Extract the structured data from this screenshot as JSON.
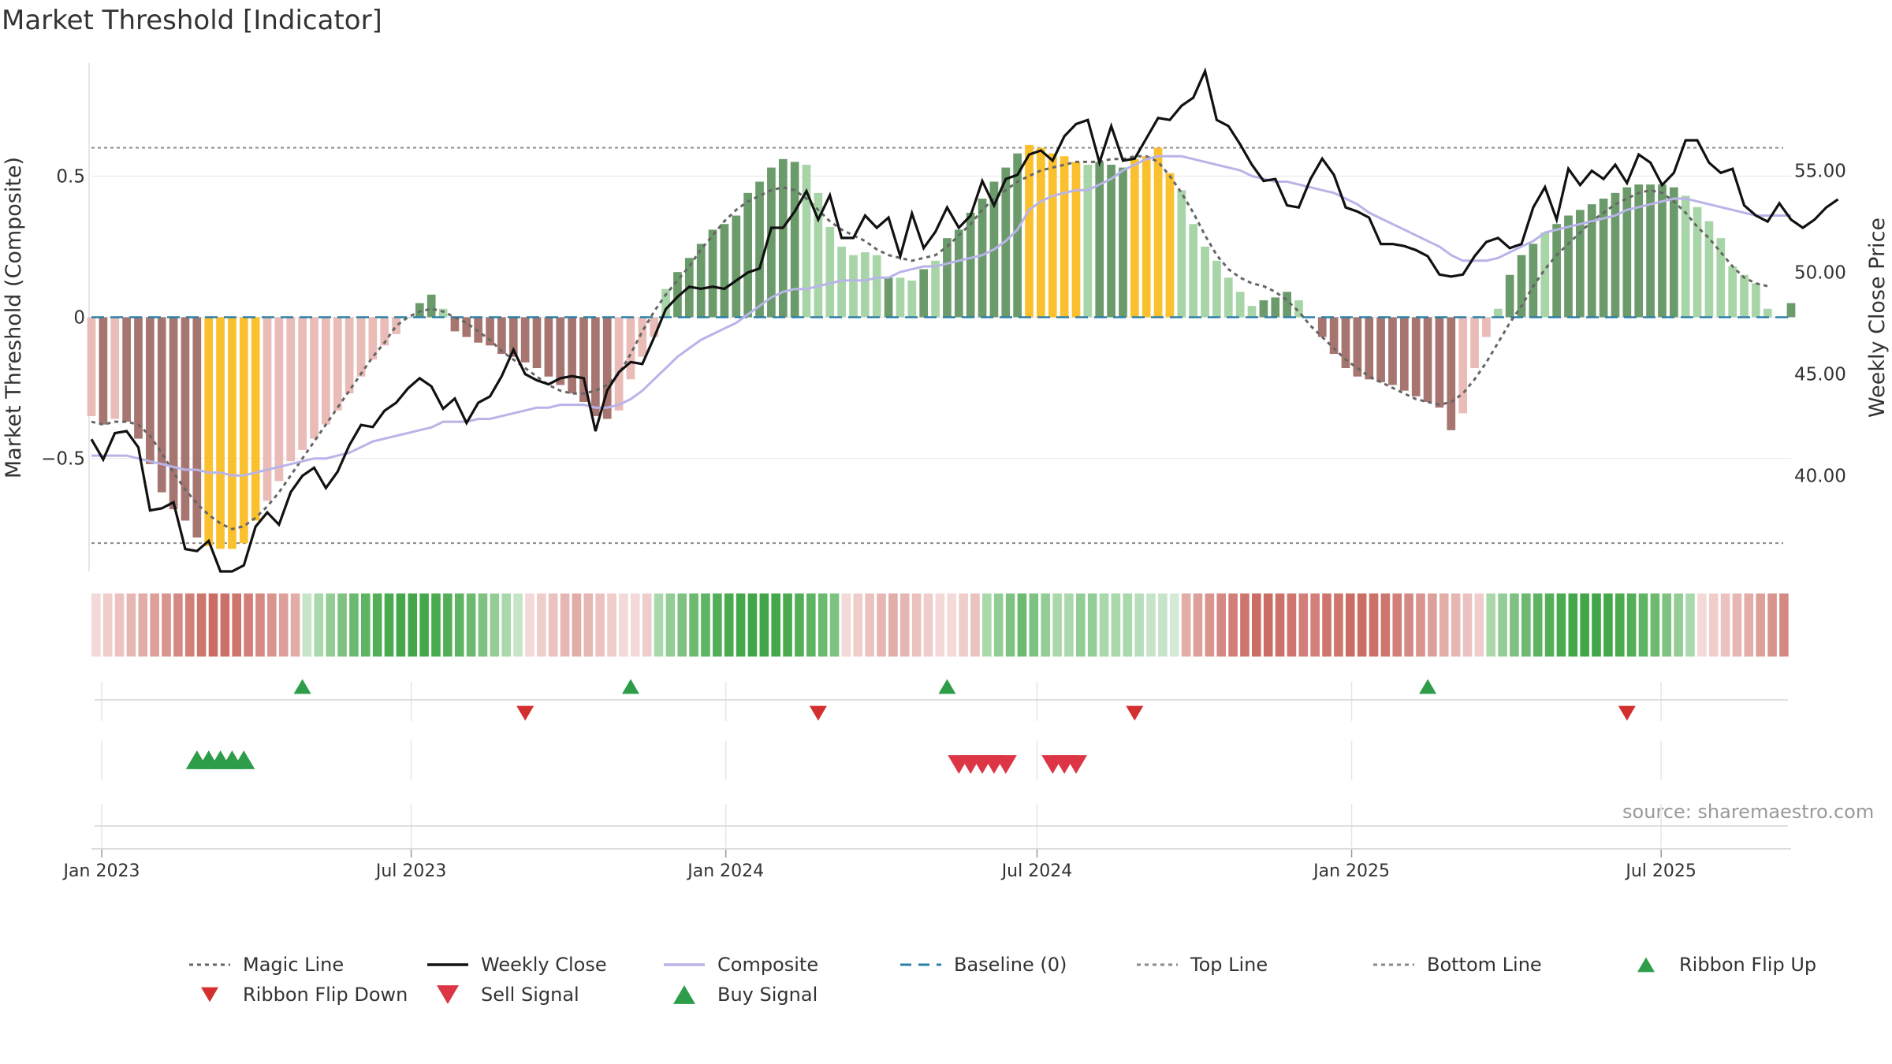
{
  "title": "Market Threshold [Indicator]",
  "source": "source: sharemaestro.com",
  "chart_data": {
    "type": "bar",
    "title": "Market Threshold [Indicator]",
    "ylabel_left": "Market Threshold (Composite)",
    "ylabel_right": "Weekly Close Price",
    "ylim_left": [
      -0.9,
      0.9
    ],
    "ylim_right": [
      35.3,
      60.3
    ],
    "yticks_left": [
      {
        "v": 0.5,
        "label": "0.5"
      },
      {
        "v": 0,
        "label": "0"
      },
      {
        "v": -0.5,
        "label": "−0.5"
      }
    ],
    "yticks_right": [
      {
        "v": 55,
        "label": "55.00"
      },
      {
        "v": 50,
        "label": "50.00"
      },
      {
        "v": 45,
        "label": "45.00"
      },
      {
        "v": 40,
        "label": "40.00"
      }
    ],
    "x_range": [
      "2022-12-26",
      "2025-09-15"
    ],
    "xticks": [
      {
        "date": "2023-01-01",
        "label": "Jan 2023"
      },
      {
        "date": "2023-07-01",
        "label": "Jul 2023"
      },
      {
        "date": "2024-01-01",
        "label": "Jan 2024"
      },
      {
        "date": "2024-07-01",
        "label": "Jul 2024"
      },
      {
        "date": "2025-01-01",
        "label": "Jan 2025"
      },
      {
        "date": "2025-07-01",
        "label": "Jul 2025"
      }
    ],
    "top_line": 0.6,
    "bottom_line": -0.8,
    "baseline": 0,
    "weeks_start": "2022-12-26",
    "composite_bars": [
      -0.35,
      -0.38,
      -0.36,
      -0.37,
      -0.43,
      -0.52,
      -0.62,
      -0.68,
      -0.72,
      -0.78,
      -0.81,
      -0.82,
      -0.82,
      -0.8,
      -0.72,
      -0.65,
      -0.58,
      -0.51,
      -0.47,
      -0.43,
      -0.38,
      -0.33,
      -0.27,
      -0.21,
      -0.15,
      -0.1,
      -0.06,
      0,
      0.05,
      0.08,
      0.03,
      -0.05,
      -0.07,
      -0.09,
      -0.1,
      -0.13,
      -0.14,
      -0.16,
      -0.18,
      -0.21,
      -0.24,
      -0.27,
      -0.3,
      -0.35,
      -0.36,
      -0.33,
      -0.22,
      -0.14,
      -0.07,
      0.1,
      0.16,
      0.21,
      0.26,
      0.31,
      0.33,
      0.36,
      0.44,
      0.48,
      0.53,
      0.56,
      0.55,
      0.54,
      0.44,
      0.32,
      0.25,
      0.22,
      0.23,
      0.22,
      0.14,
      0.14,
      0.13,
      0.17,
      0.2,
      0.28,
      0.31,
      0.37,
      0.42,
      0.48,
      0.53,
      0.58,
      0.61,
      0.6,
      0.58,
      0.57,
      0.55,
      0.54,
      0.55,
      0.54,
      0.53,
      0.56,
      0.57,
      0.6,
      0.51,
      0.45,
      0.33,
      0.25,
      0.2,
      0.14,
      0.09,
      0.04,
      0.06,
      0.07,
      0.09,
      0.06,
      0,
      -0.07,
      -0.13,
      -0.18,
      -0.21,
      -0.22,
      -0.23,
      -0.24,
      -0.26,
      -0.28,
      -0.3,
      -0.32,
      -0.4,
      -0.34,
      -0.18,
      -0.07,
      0.03,
      0.15,
      0.22,
      0.26,
      0.3,
      0.33,
      0.36,
      0.38,
      0.4,
      0.42,
      0.44,
      0.46,
      0.47,
      0.47,
      0.47,
      0.46,
      0.43,
      0.39,
      0.34,
      0.28,
      0.18,
      0.15,
      0.12,
      0.03,
      0,
      0.05
    ],
    "bar_colors": [
      "#eabcb7",
      "#a77570",
      "#eabcb7",
      "#a77570",
      "#a77570",
      "#a77570",
      "#a77570",
      "#a77570",
      "#a77570",
      "#a77570",
      "#fbc02d",
      "#fbc02d",
      "#fbc02d",
      "#fbc02d",
      "#fbc02d",
      "#eabcb7",
      "#eabcb7",
      "#eabcb7",
      "#eabcb7",
      "#eabcb7",
      "#eabcb7",
      "#eabcb7",
      "#eabcb7",
      "#eabcb7",
      "#eabcb7",
      "#eabcb7",
      "#eabcb7",
      "#a8d5a8",
      "#6b9b6b",
      "#6b9b6b",
      "#a8d5a8",
      "#a77570",
      "#a77570",
      "#a77570",
      "#a77570",
      "#a77570",
      "#a77570",
      "#a77570",
      "#a77570",
      "#a77570",
      "#a77570",
      "#a77570",
      "#a77570",
      "#a77570",
      "#a77570",
      "#eabcb7",
      "#eabcb7",
      "#eabcb7",
      "#eabcb7",
      "#a8d5a8",
      "#6b9b6b",
      "#6b9b6b",
      "#6b9b6b",
      "#6b9b6b",
      "#6b9b6b",
      "#6b9b6b",
      "#6b9b6b",
      "#6b9b6b",
      "#6b9b6b",
      "#6b9b6b",
      "#6b9b6b",
      "#a8d5a8",
      "#a8d5a8",
      "#a8d5a8",
      "#a8d5a8",
      "#a8d5a8",
      "#a8d5a8",
      "#a8d5a8",
      "#6b9b6b",
      "#a8d5a8",
      "#a8d5a8",
      "#6b9b6b",
      "#a8d5a8",
      "#6b9b6b",
      "#6b9b6b",
      "#6b9b6b",
      "#6b9b6b",
      "#6b9b6b",
      "#6b9b6b",
      "#6b9b6b",
      "#fbc02d",
      "#fbc02d",
      "#fbc02d",
      "#fbc02d",
      "#fbc02d",
      "#a8d5a8",
      "#6b9b6b",
      "#6b9b6b",
      "#6b9b6b",
      "#fbc02d",
      "#fbc02d",
      "#fbc02d",
      "#fbc02d",
      "#a8d5a8",
      "#a8d5a8",
      "#a8d5a8",
      "#a8d5a8",
      "#a8d5a8",
      "#a8d5a8",
      "#a8d5a8",
      "#6b9b6b",
      "#6b9b6b",
      "#6b9b6b",
      "#a8d5a8",
      "#a77570",
      "#a77570",
      "#a77570",
      "#a77570",
      "#a77570",
      "#a77570",
      "#a77570",
      "#a77570",
      "#a77570",
      "#a77570",
      "#a77570",
      "#a77570",
      "#a77570",
      "#eabcb7",
      "#eabcb7",
      "#eabcb7",
      "#a8d5a8",
      "#6b9b6b",
      "#6b9b6b",
      "#6b9b6b",
      "#a8d5a8",
      "#6b9b6b",
      "#6b9b6b",
      "#6b9b6b",
      "#6b9b6b",
      "#6b9b6b",
      "#6b9b6b",
      "#6b9b6b",
      "#6b9b6b",
      "#6b9b6b",
      "#6b9b6b",
      "#6b9b6b",
      "#a8d5a8",
      "#a8d5a8",
      "#a8d5a8",
      "#a8d5a8",
      "#a8d5a8",
      "#a8d5a8",
      "#a8d5a8",
      "#a8d5a8",
      "#a8d5a8",
      "#6b9b6b"
    ],
    "composite_line": [
      -0.49,
      -0.49,
      -0.49,
      -0.49,
      -0.5,
      -0.51,
      -0.52,
      -0.53,
      -0.54,
      -0.54,
      -0.55,
      -0.55,
      -0.56,
      -0.56,
      -0.55,
      -0.54,
      -0.53,
      -0.52,
      -0.51,
      -0.5,
      -0.5,
      -0.49,
      -0.48,
      -0.46,
      -0.44,
      -0.43,
      -0.42,
      -0.41,
      -0.4,
      -0.39,
      -0.37,
      -0.37,
      -0.37,
      -0.36,
      -0.36,
      -0.35,
      -0.34,
      -0.33,
      -0.32,
      -0.32,
      -0.31,
      -0.31,
      -0.31,
      -0.32,
      -0.32,
      -0.31,
      -0.29,
      -0.26,
      -0.22,
      -0.18,
      -0.14,
      -0.11,
      -0.08,
      -0.06,
      -0.04,
      -0.02,
      0.01,
      0.04,
      0.07,
      0.09,
      0.1,
      0.1,
      0.11,
      0.12,
      0.13,
      0.13,
      0.13,
      0.14,
      0.14,
      0.16,
      0.17,
      0.18,
      0.18,
      0.19,
      0.2,
      0.21,
      0.22,
      0.24,
      0.27,
      0.31,
      0.38,
      0.41,
      0.43,
      0.44,
      0.45,
      0.45,
      0.47,
      0.49,
      0.52,
      0.54,
      0.56,
      0.57,
      0.57,
      0.57,
      0.56,
      0.55,
      0.54,
      0.53,
      0.52,
      0.5,
      0.49,
      0.48,
      0.48,
      0.47,
      0.46,
      0.45,
      0.44,
      0.42,
      0.4,
      0.37,
      0.35,
      0.33,
      0.31,
      0.29,
      0.27,
      0.25,
      0.22,
      0.2,
      0.2,
      0.2,
      0.21,
      0.23,
      0.25,
      0.27,
      0.3,
      0.31,
      0.32,
      0.33,
      0.34,
      0.35,
      0.36,
      0.38,
      0.39,
      0.4,
      0.41,
      0.42,
      0.42,
      0.41,
      0.4,
      0.39,
      0.38,
      0.37,
      0.36,
      0.36,
      0.36,
      0.36
    ],
    "magic_line": [
      -0.37,
      -0.38,
      -0.37,
      -0.37,
      -0.38,
      -0.42,
      -0.48,
      -0.55,
      -0.61,
      -0.66,
      -0.7,
      -0.73,
      -0.75,
      -0.74,
      -0.71,
      -0.67,
      -0.62,
      -0.56,
      -0.5,
      -0.44,
      -0.38,
      -0.32,
      -0.26,
      -0.2,
      -0.14,
      -0.09,
      -0.03,
      0,
      0.02,
      0.03,
      0.02,
      0,
      -0.02,
      -0.05,
      -0.08,
      -0.12,
      -0.15,
      -0.18,
      -0.21,
      -0.24,
      -0.26,
      -0.27,
      -0.27,
      -0.26,
      -0.24,
      -0.2,
      -0.13,
      -0.05,
      0.02,
      0.08,
      0.13,
      0.18,
      0.24,
      0.29,
      0.34,
      0.38,
      0.41,
      0.43,
      0.45,
      0.46,
      0.45,
      0.42,
      0.38,
      0.34,
      0.31,
      0.29,
      0.27,
      0.24,
      0.22,
      0.21,
      0.2,
      0.21,
      0.22,
      0.25,
      0.29,
      0.33,
      0.38,
      0.42,
      0.45,
      0.48,
      0.5,
      0.52,
      0.53,
      0.54,
      0.55,
      0.55,
      0.55,
      0.56,
      0.56,
      0.57,
      0.57,
      0.55,
      0.5,
      0.44,
      0.37,
      0.29,
      0.22,
      0.17,
      0.14,
      0.12,
      0.11,
      0.09,
      0.06,
      0.02,
      -0.03,
      -0.07,
      -0.11,
      -0.15,
      -0.18,
      -0.21,
      -0.23,
      -0.25,
      -0.27,
      -0.29,
      -0.3,
      -0.31,
      -0.3,
      -0.27,
      -0.22,
      -0.16,
      -0.09,
      -0.02,
      0.04,
      0.11,
      0.17,
      0.22,
      0.26,
      0.3,
      0.34,
      0.37,
      0.4,
      0.42,
      0.44,
      0.45,
      0.44,
      0.41,
      0.37,
      0.32,
      0.28,
      0.23,
      0.18,
      0.14,
      0.12,
      0.11
    ],
    "weekly_close": [
      41.8,
      40.8,
      42.1,
      42.2,
      41.4,
      38.3,
      38.4,
      38.7,
      36.4,
      36.3,
      36.8,
      35.3,
      35.3,
      35.6,
      37.5,
      38.2,
      37.6,
      39.2,
      40.0,
      40.4,
      39.4,
      40.2,
      41.5,
      42.5,
      42.4,
      43.2,
      43.6,
      44.3,
      44.8,
      44.4,
      43.3,
      43.8,
      42.6,
      43.6,
      43.9,
      44.9,
      46.2,
      45.0,
      44.7,
      44.5,
      44.8,
      44.9,
      44.8,
      42.2,
      44.2,
      45.1,
      45.6,
      45.5,
      46.8,
      48.2,
      48.8,
      49.3,
      49.2,
      49.3,
      49.2,
      49.6,
      50.0,
      50.2,
      52.2,
      52.2,
      53.0,
      54.0,
      52.6,
      53.8,
      51.7,
      51.7,
      52.8,
      52.2,
      52.7,
      50.8,
      52.9,
      51.2,
      52.0,
      53.2,
      52.2,
      52.8,
      54.5,
      53.3,
      54.6,
      54.8,
      55.8,
      56.0,
      55.5,
      56.7,
      57.3,
      57.5,
      55.4,
      57.2,
      55.5,
      55.6,
      56.6,
      57.6,
      57.5,
      58.2,
      58.6,
      59.9,
      57.5,
      57.2,
      56.3,
      55.3,
      54.5,
      54.6,
      53.3,
      53.2,
      54.6,
      55.6,
      54.8,
      53.2,
      53.0,
      52.7,
      51.4,
      51.4,
      51.3,
      51.1,
      50.8,
      49.9,
      49.8,
      49.9,
      50.8,
      51.5,
      51.7,
      51.2,
      51.4,
      53.2,
      54.2,
      52.6,
      55.1,
      54.3,
      55.0,
      54.6,
      55.3,
      54.4,
      55.8,
      55.4,
      54.3,
      54.9,
      56.5,
      56.5,
      55.4,
      54.9,
      55.1,
      53.3,
      52.8,
      52.5,
      53.4,
      52.6,
      52.2,
      52.6,
      53.2,
      53.6
    ]
  },
  "ribbon": {
    "colors": [
      "#f3d9d7",
      "#efcdca",
      "#ebc2bf",
      "#e6b6b2",
      "#e2aca7",
      "#dd9f99",
      "#d9948e",
      "#d58984",
      "#d17f78",
      "#ce766e",
      "#cb6d64",
      "#cc706a",
      "#ce766e",
      "#d17f78",
      "#d58984",
      "#d9948e",
      "#dd9f99",
      "#e2aca7",
      "#c6e4c7",
      "#a9d8ab",
      "#93cd96",
      "#7ec281",
      "#6cba6f",
      "#5db462",
      "#52af57",
      "#49aa4e",
      "#44a84a",
      "#42a648",
      "#44a84a",
      "#49aa4e",
      "#52af57",
      "#5db462",
      "#6cba6f",
      "#7ec281",
      "#93cd96",
      "#a9d8ab",
      "#c6e4c7",
      "#f3d9d7",
      "#efcdca",
      "#ebc2bf",
      "#e6b6b2",
      "#e2aca7",
      "#e6b6b2",
      "#ebc2bf",
      "#efcdca",
      "#f3d9d7",
      "#f3d9d7",
      "#efcdca",
      "#a9d8ab",
      "#93cd96",
      "#7ec281",
      "#6cba6f",
      "#5db462",
      "#52af57",
      "#49aa4e",
      "#44a84a",
      "#42a648",
      "#42a648",
      "#44a84a",
      "#49aa4e",
      "#52af57",
      "#5db462",
      "#6cba6f",
      "#7ec281",
      "#f3d9d7",
      "#efcdca",
      "#ebc2bf",
      "#e6b6b2",
      "#e2aca7",
      "#e6b6b2",
      "#ebc2bf",
      "#efcdca",
      "#f3d9d7",
      "#f3d9d7",
      "#efcdca",
      "#ebc2bf",
      "#a9d8ab",
      "#93cd96",
      "#7ec281",
      "#6cba6f",
      "#7ec281",
      "#93cd96",
      "#a9d8ab",
      "#a9d8ab",
      "#93cd96",
      "#93cd96",
      "#a9d8ab",
      "#a9d8ab",
      "#a9d8ab",
      "#b6debb",
      "#c6e4c7",
      "#c6e4c7",
      "#d3ead4",
      "#e2aca7",
      "#dd9f99",
      "#d9948e",
      "#d58984",
      "#d17f78",
      "#ce766e",
      "#cb6d64",
      "#cb6d64",
      "#cc706a",
      "#ce766e",
      "#d17f78",
      "#d17f78",
      "#ce766e",
      "#ce766e",
      "#cb6d64",
      "#cb6d64",
      "#cc706a",
      "#ce766e",
      "#d17f78",
      "#d58984",
      "#d9948e",
      "#dd9f99",
      "#e2aca7",
      "#e6b6b2",
      "#ebc2bf",
      "#efcdca",
      "#a9d8ab",
      "#93cd96",
      "#7ec281",
      "#6cba6f",
      "#5db462",
      "#52af57",
      "#49aa4e",
      "#44a84a",
      "#42a648",
      "#42a648",
      "#44a84a",
      "#49aa4e",
      "#52af57",
      "#5db462",
      "#6cba6f",
      "#7ec281",
      "#93cd96",
      "#a9d8ab",
      "#f3d9d7",
      "#efcdca",
      "#ebc2bf",
      "#e6b6b2",
      "#e2aca7",
      "#dd9f99",
      "#d9948e",
      "#d58984"
    ]
  },
  "signals": {
    "ribbon_flip_up": [
      18,
      46,
      73,
      114
    ],
    "ribbon_flip_down": [
      37,
      62,
      89,
      131
    ],
    "buy_signal": [
      9,
      10,
      11,
      12,
      13
    ],
    "sell_signal": [
      74,
      75,
      76,
      77,
      78,
      82,
      83,
      84
    ]
  },
  "legend": [
    {
      "id": "magic-line",
      "label": "Magic Line",
      "kind": "dotted",
      "color": "#666666"
    },
    {
      "id": "weekly-close",
      "label": "Weekly Close",
      "kind": "solid",
      "color": "#111111"
    },
    {
      "id": "composite",
      "label": "Composite",
      "kind": "solid",
      "color": "#b9b4e8"
    },
    {
      "id": "baseline",
      "label": "Baseline (0)",
      "kind": "dashed",
      "color": "#2e7fa8"
    },
    {
      "id": "top-line",
      "label": "Top Line",
      "kind": "dotted",
      "color": "#888888"
    },
    {
      "id": "bottom-line",
      "label": "Bottom Line",
      "kind": "dotted",
      "color": "#888888"
    },
    {
      "id": "ribbon-flip-up",
      "label": "Ribbon Flip Up",
      "kind": "tri-up",
      "color": "#2e9d4a"
    },
    {
      "id": "ribbon-flip-down",
      "label": "Ribbon Flip Down",
      "kind": "tri-down",
      "color": "#d32f2f"
    },
    {
      "id": "sell-signal",
      "label": "Sell Signal",
      "kind": "tri-down-lg",
      "color": "#dc3545"
    },
    {
      "id": "buy-signal",
      "label": "Buy Signal",
      "kind": "tri-up-lg",
      "color": "#2e9d4a"
    }
  ]
}
